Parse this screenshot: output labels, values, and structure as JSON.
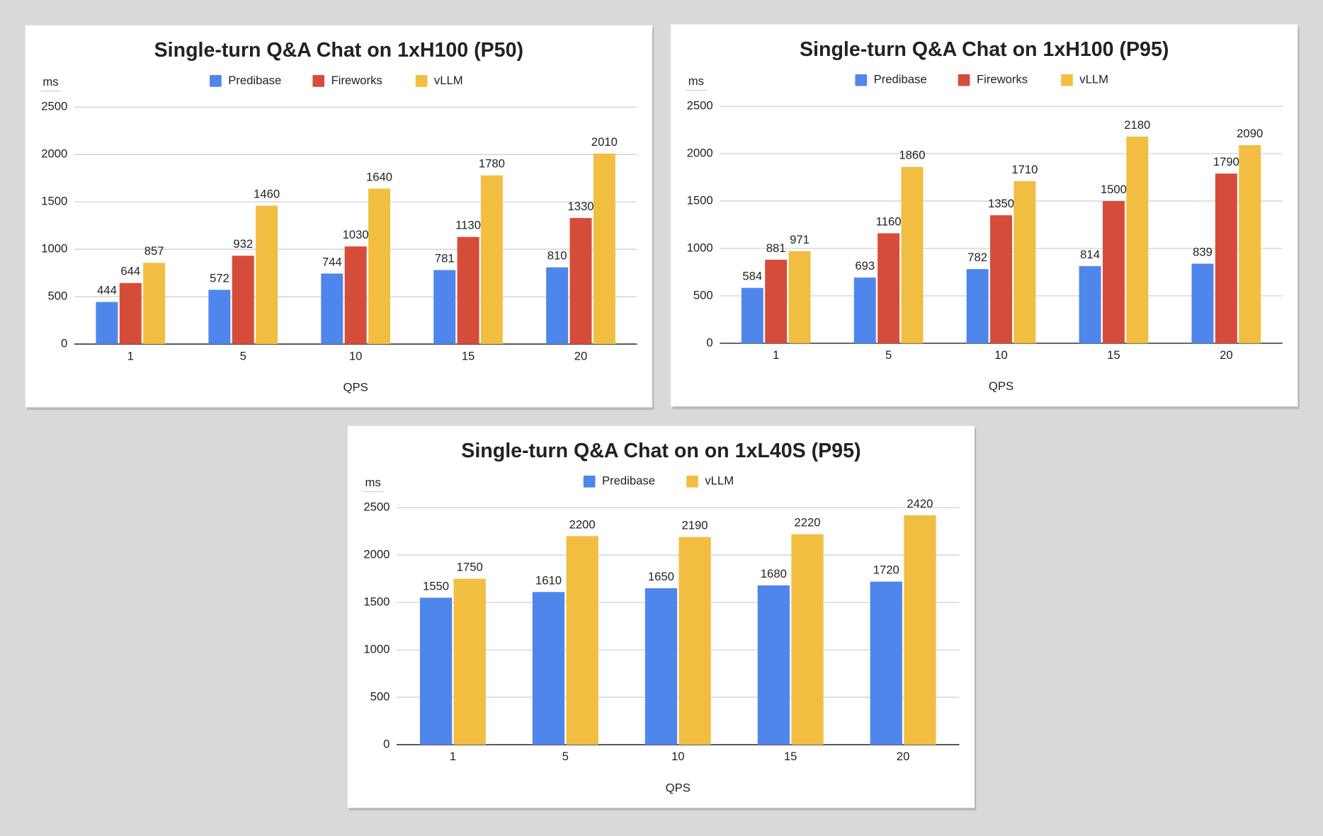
{
  "chart_data": [
    {
      "type": "bar",
      "title": "Single-turn Q&A Chat on 1xH100 (P50)",
      "y_label": "ms",
      "x_label": "QPS",
      "categories": [
        "1",
        "5",
        "10",
        "15",
        "20"
      ],
      "series": [
        {
          "name": "Predibase",
          "color": "#4e86ec",
          "values": [
            444,
            572,
            744,
            781,
            810
          ]
        },
        {
          "name": "Fireworks",
          "color": "#d64c3b",
          "values": [
            644,
            932,
            1030,
            1130,
            1330
          ]
        },
        {
          "name": "vLLM",
          "color": "#f1be42",
          "values": [
            857,
            1460,
            1640,
            1780,
            2010
          ]
        }
      ],
      "ylim": [
        0,
        2500
      ],
      "yticks": [
        0,
        500,
        1000,
        1500,
        2000,
        2500
      ],
      "grid": true
    },
    {
      "type": "bar",
      "title": "Single-turn Q&A Chat on 1xH100 (P95)",
      "y_label": "ms",
      "x_label": "QPS",
      "categories": [
        "1",
        "5",
        "10",
        "15",
        "20"
      ],
      "series": [
        {
          "name": "Predibase",
          "color": "#4e86ec",
          "values": [
            584,
            693,
            782,
            814,
            839
          ]
        },
        {
          "name": "Fireworks",
          "color": "#d64c3b",
          "values": [
            881,
            1160,
            1350,
            1500,
            1790
          ]
        },
        {
          "name": "vLLM",
          "color": "#f1be42",
          "values": [
            971,
            1860,
            1710,
            2180,
            2090
          ]
        }
      ],
      "ylim": [
        0,
        2500
      ],
      "yticks": [
        0,
        500,
        1000,
        1500,
        2000,
        2500
      ],
      "grid": true
    },
    {
      "type": "bar",
      "title": "Single-turn Q&A Chat on on 1xL40S (P95)",
      "y_label": "ms",
      "x_label": "QPS",
      "categories": [
        "1",
        "5",
        "10",
        "15",
        "20"
      ],
      "series": [
        {
          "name": "Predibase",
          "color": "#4e86ec",
          "values": [
            1550,
            1610,
            1650,
            1680,
            1720
          ]
        },
        {
          "name": "vLLM",
          "color": "#f1be42",
          "values": [
            1750,
            2200,
            2190,
            2220,
            2420
          ]
        }
      ],
      "ylim": [
        0,
        2500
      ],
      "yticks": [
        0,
        500,
        1000,
        1500,
        2000,
        2500
      ],
      "grid": true
    }
  ]
}
